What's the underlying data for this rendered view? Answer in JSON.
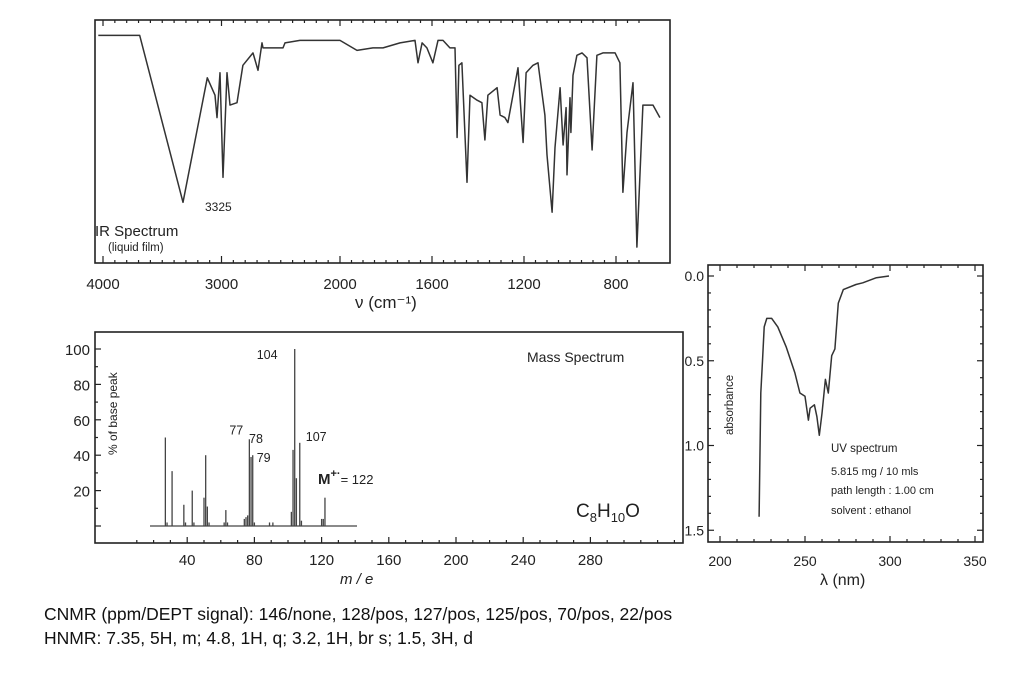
{
  "chart_data": [
    {
      "type": "line",
      "title": "IR Spectrum",
      "subtitle": "(liquid film)",
      "xlabel": "ν (cm⁻¹)",
      "xticks": [
        4000,
        3000,
        2000,
        1600,
        1200,
        800
      ],
      "xlim": [
        4050,
        600
      ],
      "x_scale": "split: 4000–2000 compressed, 2000–600 expanded",
      "grid": false,
      "annotations": [
        {
          "x": 3325,
          "text": "3325"
        }
      ],
      "points": [
        [
          4040,
          93
        ],
        [
          3690,
          93
        ],
        [
          3325,
          26
        ],
        [
          3120,
          76
        ],
        [
          3055,
          69
        ],
        [
          3038,
          60
        ],
        [
          3013,
          78
        ],
        [
          2987,
          36
        ],
        [
          2954,
          78
        ],
        [
          2928,
          65
        ],
        [
          2869,
          66
        ],
        [
          2819,
          81
        ],
        [
          2734,
          86
        ],
        [
          2692,
          79
        ],
        [
          2658,
          90
        ],
        [
          2650,
          88
        ],
        [
          2481,
          88
        ],
        [
          2464,
          90
        ],
        [
          2338,
          91
        ],
        [
          2000,
          91
        ],
        [
          1926,
          87
        ],
        [
          1857,
          88
        ],
        [
          1813,
          88
        ],
        [
          1739,
          90
        ],
        [
          1674,
          91
        ],
        [
          1661,
          82
        ],
        [
          1643,
          90
        ],
        [
          1622,
          88
        ],
        [
          1596,
          82
        ],
        [
          1574,
          91
        ],
        [
          1552,
          91
        ],
        [
          1522,
          88
        ],
        [
          1500,
          88
        ],
        [
          1491,
          52
        ],
        [
          1483,
          81
        ],
        [
          1470,
          82
        ],
        [
          1448,
          34
        ],
        [
          1435,
          69
        ],
        [
          1404,
          67
        ],
        [
          1383,
          66
        ],
        [
          1370,
          51
        ],
        [
          1357,
          69
        ],
        [
          1317,
          72
        ],
        [
          1304,
          61
        ],
        [
          1283,
          60
        ],
        [
          1270,
          58
        ],
        [
          1226,
          80
        ],
        [
          1204,
          50
        ],
        [
          1191,
          78
        ],
        [
          1161,
          81
        ],
        [
          1139,
          82
        ],
        [
          1109,
          61
        ],
        [
          1100,
          45
        ],
        [
          1078,
          22
        ],
        [
          1065,
          48
        ],
        [
          1043,
          72
        ],
        [
          1030,
          49
        ],
        [
          1017,
          64
        ],
        [
          1013,
          37
        ],
        [
          1000,
          68
        ],
        [
          996,
          54
        ],
        [
          987,
          77
        ],
        [
          970,
          85
        ],
        [
          948,
          86
        ],
        [
          926,
          84
        ],
        [
          904,
          47
        ],
        [
          883,
          85
        ],
        [
          857,
          86
        ],
        [
          804,
          86
        ],
        [
          783,
          82
        ],
        [
          770,
          30
        ],
        [
          752,
          54
        ],
        [
          726,
          74
        ],
        [
          709,
          8
        ],
        [
          683,
          65
        ],
        [
          639,
          65
        ],
        [
          609,
          60
        ]
      ]
    },
    {
      "type": "bar",
      "title": "Mass Spectrum",
      "formula": {
        "main": "C",
        "sub1": "8",
        "mid": "H",
        "sub2": "10",
        "end": "O"
      },
      "molecular_ion": {
        "label": "M",
        "sup": "+·",
        "text": "= 122"
      },
      "xlabel": "m / e",
      "ylabel": "% of base peak",
      "xticks": [
        40,
        80,
        120,
        160,
        200,
        240,
        280
      ],
      "yticks": [
        20,
        40,
        60,
        80,
        100
      ],
      "ylim": [
        0,
        100
      ],
      "grid": false,
      "peak_labels": [
        {
          "x": 104,
          "text": "104"
        },
        {
          "x": 77,
          "text": "77"
        },
        {
          "x": 78,
          "text": "78"
        },
        {
          "x": 79,
          "text": "79"
        },
        {
          "x": 107,
          "text": "107"
        }
      ],
      "peaks": [
        [
          27,
          50
        ],
        [
          28,
          2
        ],
        [
          31,
          31
        ],
        [
          38,
          12
        ],
        [
          39,
          2
        ],
        [
          43,
          20
        ],
        [
          44,
          2
        ],
        [
          50,
          16
        ],
        [
          51,
          40
        ],
        [
          52,
          11
        ],
        [
          53,
          2
        ],
        [
          62,
          2
        ],
        [
          63,
          9
        ],
        [
          64,
          2
        ],
        [
          74,
          4
        ],
        [
          75,
          5
        ],
        [
          76,
          6
        ],
        [
          77,
          49
        ],
        [
          78,
          39
        ],
        [
          79,
          40
        ],
        [
          80,
          2
        ],
        [
          89,
          2
        ],
        [
          91,
          2
        ],
        [
          102,
          8
        ],
        [
          103,
          43
        ],
        [
          104,
          100
        ],
        [
          105,
          27
        ],
        [
          107,
          47
        ],
        [
          108,
          3
        ],
        [
          120,
          4
        ],
        [
          121,
          4
        ],
        [
          122,
          16
        ]
      ]
    },
    {
      "type": "line",
      "title": "UV spectrum",
      "notes": [
        "5.815  mg / 10 mls",
        "path length : 1.00 cm",
        "solvent : ethanol"
      ],
      "xlabel": "λ (nm)",
      "ylabel": "absorbance",
      "xticks": [
        200,
        250,
        300,
        350
      ],
      "yticks": [
        "0.0",
        "0.5",
        "1.0",
        "1.5"
      ],
      "xlim": [
        193,
        355
      ],
      "ylim": [
        1.55,
        -0.03
      ],
      "y_inverted": true,
      "grid": false,
      "points": [
        [
          223,
          1.42
        ],
        [
          224,
          0.69
        ],
        [
          225,
          0.5
        ],
        [
          226,
          0.3
        ],
        [
          227.5,
          0.25
        ],
        [
          230.4,
          0.25
        ],
        [
          234,
          0.3
        ],
        [
          239,
          0.42
        ],
        [
          244,
          0.57
        ],
        [
          247,
          0.69
        ],
        [
          250,
          0.71
        ],
        [
          252,
          0.85
        ],
        [
          253,
          0.78
        ],
        [
          255.5,
          0.76
        ],
        [
          257,
          0.83
        ],
        [
          258.4,
          0.94
        ],
        [
          260,
          0.81
        ],
        [
          262,
          0.61
        ],
        [
          263.7,
          0.69
        ],
        [
          265.7,
          0.47
        ],
        [
          267.6,
          0.43
        ],
        [
          269.6,
          0.16
        ],
        [
          272.5,
          0.08
        ],
        [
          280,
          0.05
        ],
        [
          284,
          0.04
        ],
        [
          292,
          0.01
        ],
        [
          299.4,
          0.0
        ]
      ]
    }
  ],
  "text": {
    "cnmr": "CNMR (ppm/DEPT signal): 146/none, 128/pos, 127/pos, 125/pos, 70/pos, 22/pos",
    "hnmr": "HNMR: 7.35, 5H, m; 4.8, 1H, q; 3.2, 1H, br s; 1.5, 3H, d"
  }
}
